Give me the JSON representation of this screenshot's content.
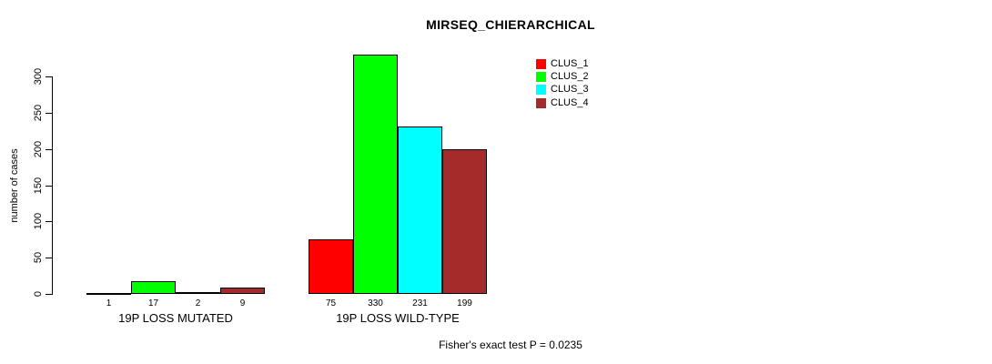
{
  "chart_data": {
    "type": "bar",
    "title": "MIRSEQ_CHIERARCHICAL",
    "ylabel": "number of cases",
    "xlabel": "",
    "categories": [
      "19P LOSS MUTATED",
      "19P LOSS WILD-TYPE"
    ],
    "series": [
      {
        "name": "CLUS_1",
        "color": "#FF0000",
        "values": [
          1,
          75
        ]
      },
      {
        "name": "CLUS_2",
        "color": "#00FF00",
        "values": [
          17,
          330
        ]
      },
      {
        "name": "CLUS_3",
        "color": "#00FFFF",
        "values": [
          2,
          231
        ]
      },
      {
        "name": "CLUS_4",
        "color": "#A52A2A",
        "values": [
          9,
          199
        ]
      }
    ],
    "bar_value_labels": [
      [
        "1",
        "17",
        "2",
        "9"
      ],
      [
        "75",
        "330",
        "231",
        "199"
      ]
    ],
    "yticks": [
      "0",
      "50",
      "100",
      "150",
      "200",
      "250",
      "300"
    ],
    "ylim": [
      0,
      300
    ],
    "grid": false,
    "legend_position": "top-right",
    "annotation": "Fisher's exact test P = 0.0235",
    "background_color": "#FFFFFF",
    "bar_border_color": "#000000"
  }
}
